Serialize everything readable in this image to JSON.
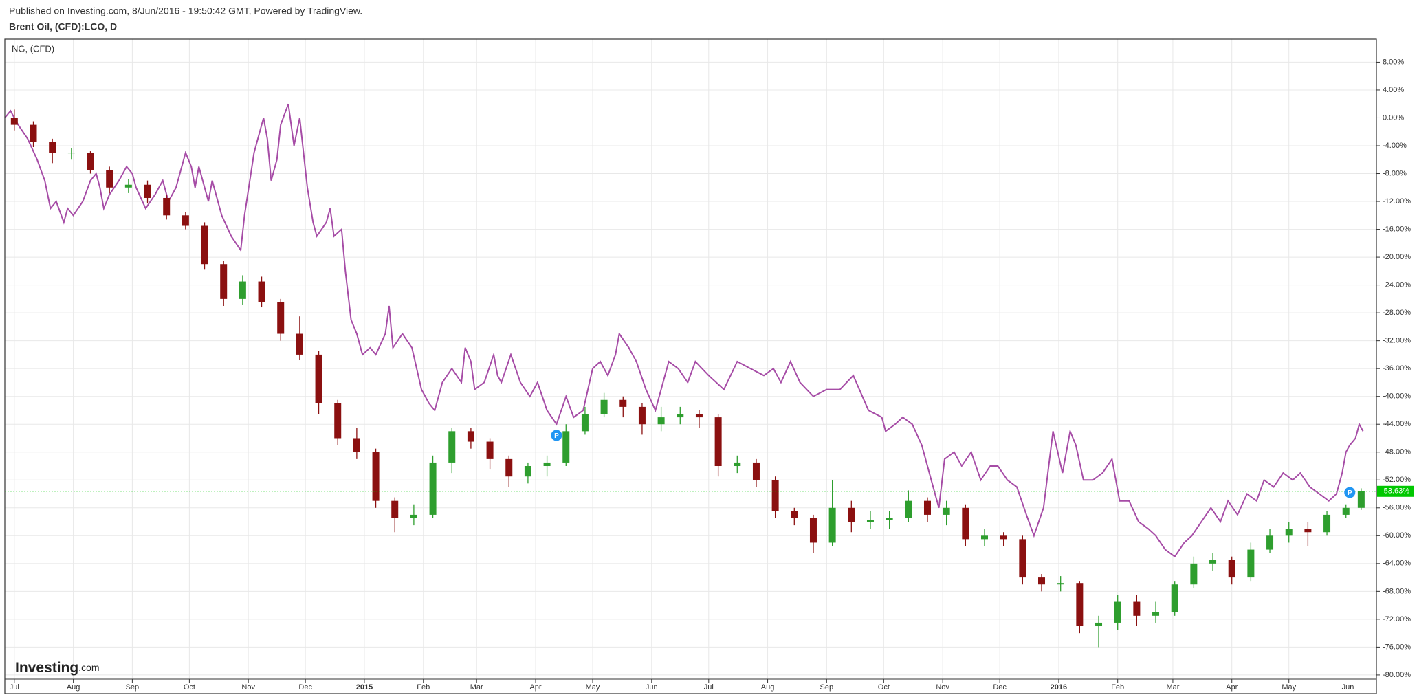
{
  "chart_data": {
    "type": "candlestick",
    "source": "Published on Investing.com, 8/Jun/2016 - 19:50:42 GMT, Powered by TradingView.",
    "title": "Brent Oil, (CFD):LCO, D",
    "watermark": [
      "Investing",
      ".com"
    ],
    "xlim": [
      -5,
      716
    ],
    "ylim": [
      -80.6,
      11.3
    ],
    "grid": true,
    "xticks": [
      {
        "value": 0,
        "label": "Jul"
      },
      {
        "value": 31,
        "label": "Aug"
      },
      {
        "value": 62,
        "label": "Sep"
      },
      {
        "value": 92,
        "label": "Oct"
      },
      {
        "value": 123,
        "label": "Nov"
      },
      {
        "value": 153,
        "label": "Dec"
      },
      {
        "value": 184,
        "label": "2015"
      },
      {
        "value": 215,
        "label": "Feb"
      },
      {
        "value": 243,
        "label": "Mar"
      },
      {
        "value": 274,
        "label": "Apr"
      },
      {
        "value": 304,
        "label": "May"
      },
      {
        "value": 335,
        "label": "Jun"
      },
      {
        "value": 365,
        "label": "Jul"
      },
      {
        "value": 396,
        "label": "Aug"
      },
      {
        "value": 427,
        "label": "Sep"
      },
      {
        "value": 457,
        "label": "Oct"
      },
      {
        "value": 488,
        "label": "Nov"
      },
      {
        "value": 518,
        "label": "Dec"
      },
      {
        "value": 549,
        "label": "2016"
      },
      {
        "value": 580,
        "label": "Feb"
      },
      {
        "value": 609,
        "label": "Mar"
      },
      {
        "value": 640,
        "label": "Apr"
      },
      {
        "value": 670,
        "label": "May"
      },
      {
        "value": 701,
        "label": "Jun"
      }
    ],
    "yticks": [
      {
        "value": 8,
        "label": "8.00%"
      },
      {
        "value": 4,
        "label": "4.00%"
      },
      {
        "value": 0,
        "label": "0.00%"
      },
      {
        "value": -4,
        "label": "-4.00%"
      },
      {
        "value": -8,
        "label": "-8.00%"
      },
      {
        "value": -12,
        "label": "-12.00%"
      },
      {
        "value": -16,
        "label": "-16.00%"
      },
      {
        "value": -20,
        "label": "-20.00%"
      },
      {
        "value": -24,
        "label": "-24.00%"
      },
      {
        "value": -28,
        "label": "-28.00%"
      },
      {
        "value": -32,
        "label": "-32.00%"
      },
      {
        "value": -36,
        "label": "-36.00%"
      },
      {
        "value": -40,
        "label": "-40.00%"
      },
      {
        "value": -44,
        "label": "-44.00%"
      },
      {
        "value": -48,
        "label": "-48.00%"
      },
      {
        "value": -52,
        "label": "-52.00%"
      },
      {
        "value": -56,
        "label": "-56.00%"
      },
      {
        "value": -60,
        "label": "-60.00%"
      },
      {
        "value": -64,
        "label": "-64.00%"
      },
      {
        "value": -68,
        "label": "-68.00%"
      },
      {
        "value": -72,
        "label": "-72.00%"
      },
      {
        "value": -76,
        "label": "-76.00%"
      },
      {
        "value": -80,
        "label": "-80.00%"
      }
    ],
    "last_value": {
      "value": -53.63,
      "label": "-53.63%",
      "color": "#00c800"
    },
    "markers": [
      {
        "label": "P",
        "x": 285,
        "y": -45.6
      },
      {
        "label": "P",
        "x": 702,
        "y": -53.8
      }
    ],
    "series": [
      {
        "type": "candlestick",
        "up_color": "#2e9e2e",
        "down_color": "#8b1010",
        "x": [
          0,
          10,
          20,
          30,
          40,
          50,
          60,
          70,
          80,
          90,
          100,
          110,
          120,
          130,
          140,
          150,
          160,
          170,
          180,
          190,
          200,
          210,
          220,
          230,
          240,
          250,
          260,
          270,
          280,
          290,
          300,
          310,
          320,
          330,
          340,
          350,
          360,
          370,
          380,
          390,
          400,
          410,
          420,
          430,
          440,
          450,
          460,
          470,
          480,
          490,
          500,
          510,
          520,
          530,
          540,
          550,
          560,
          570,
          580,
          590,
          600,
          610,
          620,
          630,
          640,
          650,
          660,
          670,
          680,
          690,
          700,
          708
        ],
        "open": [
          0,
          -1,
          -3.5,
          -5,
          -5,
          -7.5,
          -10,
          -9.6,
          -11.5,
          -14,
          -15.5,
          -21,
          -26,
          -23.5,
          -26.5,
          -31,
          -34,
          -41,
          -46,
          -48,
          -55,
          -57.5,
          -57,
          -49.5,
          -45,
          -46.5,
          -49,
          -51.5,
          -50,
          -49.5,
          -45,
          -42.5,
          -40.5,
          -41.5,
          -44,
          -43,
          -42.5,
          -43,
          -50,
          -49.5,
          -52,
          -56.5,
          -57.5,
          -61,
          -56,
          -58,
          -57.7,
          -57.5,
          -55,
          -57,
          -56,
          -60.5,
          -60,
          -60.5,
          -66,
          -67,
          -66.8,
          -73,
          -72.5,
          -69.5,
          -71.5,
          -71,
          -67,
          -64,
          -63.5,
          -66,
          -62,
          -60,
          -59,
          -59.5,
          -57,
          -56
        ],
        "high": [
          1.2,
          -0.5,
          -3,
          -4.3,
          -4.8,
          -7,
          -8.8,
          -9,
          -11,
          -13.5,
          -15,
          -20.5,
          -22.6,
          -22.8,
          -26,
          -28.5,
          -33.5,
          -40.5,
          -44.5,
          -47.5,
          -54.5,
          -55.5,
          -48.5,
          -44.5,
          -44.5,
          -46,
          -48.5,
          -49.5,
          -48.5,
          -44,
          -41.5,
          -39.5,
          -40,
          -41,
          -41.5,
          -41.5,
          -42,
          -42.5,
          -48.5,
          -49,
          -51.5,
          -56,
          -57,
          -52,
          -55,
          -56.5,
          -56.5,
          -53.5,
          -54.5,
          -55,
          -55.5,
          -59,
          -59.5,
          -60,
          -65.5,
          -65.8,
          -66.5,
          -71.5,
          -68.5,
          -68.5,
          -69.5,
          -66.5,
          -63,
          -62.5,
          -63,
          -61,
          -59,
          -58,
          -58,
          -56.5,
          -55.5,
          -53.2
        ],
        "low": [
          -1.8,
          -4.2,
          -6.5,
          -6,
          -8,
          -10.8,
          -10.8,
          -12.3,
          -14.6,
          -16,
          -21.8,
          -27,
          -26.8,
          -27.2,
          -32,
          -34.8,
          -42.5,
          -47,
          -49,
          -56,
          -59.5,
          -58.5,
          -57.5,
          -51,
          -47.5,
          -50.5,
          -53,
          -52.5,
          -51.5,
          -50,
          -45.5,
          -43,
          -43,
          -45.5,
          -45,
          -44,
          -44.5,
          -51.5,
          -51,
          -53,
          -57.5,
          -58.5,
          -62.5,
          -61.5,
          -59.5,
          -59,
          -59,
          -58,
          -58,
          -58.5,
          -61.5,
          -61.5,
          -61.5,
          -67,
          -68,
          -68,
          -74,
          -76,
          -73.5,
          -73,
          -72.5,
          -71.5,
          -67.5,
          -65,
          -67,
          -66.5,
          -62.5,
          -61,
          -61.5,
          -60,
          -57.5,
          -56.3
        ],
        "close": [
          -1,
          -3.5,
          -5,
          -5,
          -7.5,
          -10,
          -9.6,
          -11.5,
          -14,
          -15.5,
          -21,
          -26,
          -23.5,
          -26.5,
          -31,
          -34,
          -41,
          -46,
          -48,
          -55,
          -57.5,
          -57,
          -49.5,
          -45,
          -46.5,
          -49,
          -51.5,
          -50,
          -49.5,
          -45,
          -42.5,
          -40.5,
          -41.5,
          -44,
          -43,
          -42.5,
          -43,
          -50,
          -49.5,
          -52,
          -56.5,
          -57.5,
          -61,
          -56,
          -58,
          -57.7,
          -57.5,
          -55,
          -57,
          -56,
          -60.5,
          -60,
          -60.5,
          -66,
          -67,
          -66.8,
          -73,
          -72.5,
          -69.5,
          -71.5,
          -71,
          -67,
          -64,
          -63.5,
          -66,
          -62,
          -60,
          -59,
          -59.5,
          -57,
          -56,
          -53.63
        ]
      },
      {
        "type": "line",
        "name": "NG,  (CFD)",
        "color": "#a64ca6",
        "x": [
          -5,
          -2,
          0,
          2,
          7,
          12,
          16,
          19,
          22,
          26,
          28,
          31,
          36,
          40,
          43,
          45,
          47,
          50,
          55,
          59,
          62,
          64,
          69,
          74,
          78,
          81,
          85,
          90,
          93,
          95,
          97,
          102,
          104,
          109,
          114,
          119,
          121,
          126,
          128,
          131,
          133,
          135,
          138,
          140,
          144,
          147,
          150,
          152,
          154,
          157,
          159,
          164,
          166,
          168,
          172,
          174,
          177,
          180,
          183,
          187,
          190,
          195,
          197,
          199,
          204,
          209,
          214,
          218,
          221,
          225,
          230,
          235,
          237,
          240,
          242,
          247,
          252,
          254,
          256,
          261,
          266,
          271,
          275,
          280,
          285,
          290,
          294,
          299,
          304,
          308,
          312,
          316,
          318,
          323,
          327,
          332,
          337,
          339,
          344,
          349,
          354,
          358,
          365,
          373,
          380,
          387,
          394,
          399,
          403,
          408,
          413,
          420,
          427,
          434,
          441,
          449,
          456,
          458,
          463,
          467,
          472,
          477,
          482,
          486,
          489,
          494,
          498,
          503,
          508,
          513,
          517,
          522,
          527,
          532,
          536,
          541,
          546,
          551,
          555,
          558,
          562,
          567,
          572,
          577,
          581,
          586,
          591,
          596,
          600,
          605,
          610,
          615,
          619,
          624,
          629,
          634,
          638,
          643,
          648,
          653,
          657,
          662,
          667,
          672,
          676,
          681,
          686,
          691,
          695,
          698,
          700,
          702,
          705,
          707,
          709
        ],
        "values": [
          0,
          1,
          0,
          -1,
          -3,
          -6,
          -9,
          -13,
          -12,
          -15,
          -13,
          -14,
          -12,
          -9,
          -8,
          -10,
          -13,
          -11,
          -9,
          -7,
          -8,
          -10,
          -13,
          -11,
          -9,
          -12,
          -10,
          -5,
          -7,
          -10,
          -7,
          -12,
          -9,
          -14,
          -17,
          -19,
          -14,
          -5,
          -3,
          0,
          -3,
          -9,
          -6,
          -1,
          2,
          -4,
          0,
          -5,
          -10,
          -15,
          -17,
          -15,
          -13,
          -17,
          -16,
          -22,
          -29,
          -31,
          -34,
          -33,
          -34,
          -31,
          -27,
          -33,
          -31,
          -33,
          -39,
          -41,
          -42,
          -38,
          -36,
          -38,
          -33,
          -35,
          -39,
          -38,
          -34,
          -37,
          -38,
          -34,
          -38,
          -40,
          -38,
          -42,
          -44,
          -40,
          -43,
          -42,
          -36,
          -35,
          -37,
          -34,
          -31,
          -33,
          -35,
          -39,
          -42,
          -40,
          -35,
          -36,
          -38,
          -35,
          -37,
          -39,
          -35,
          -36,
          -37,
          -36,
          -38,
          -35,
          -38,
          -40,
          -39,
          -39,
          -37,
          -42,
          -43,
          -45,
          -44,
          -43,
          -44,
          -47,
          -52,
          -56,
          -49,
          -48,
          -50,
          -48,
          -52,
          -50,
          -50,
          -52,
          -53,
          -57,
          -60,
          -56,
          -45,
          -51,
          -45,
          -47,
          -52,
          -52,
          -51,
          -49,
          -55,
          -55,
          -58,
          -59,
          -60,
          -62,
          -63,
          -61,
          -60,
          -58,
          -56,
          -58,
          -55,
          -57,
          -54,
          -55,
          -52,
          -53,
          -51,
          -52,
          -51,
          -53,
          -54,
          -55,
          -54,
          -51,
          -48,
          -47,
          -46,
          -44,
          -45
        ]
      }
    ]
  }
}
